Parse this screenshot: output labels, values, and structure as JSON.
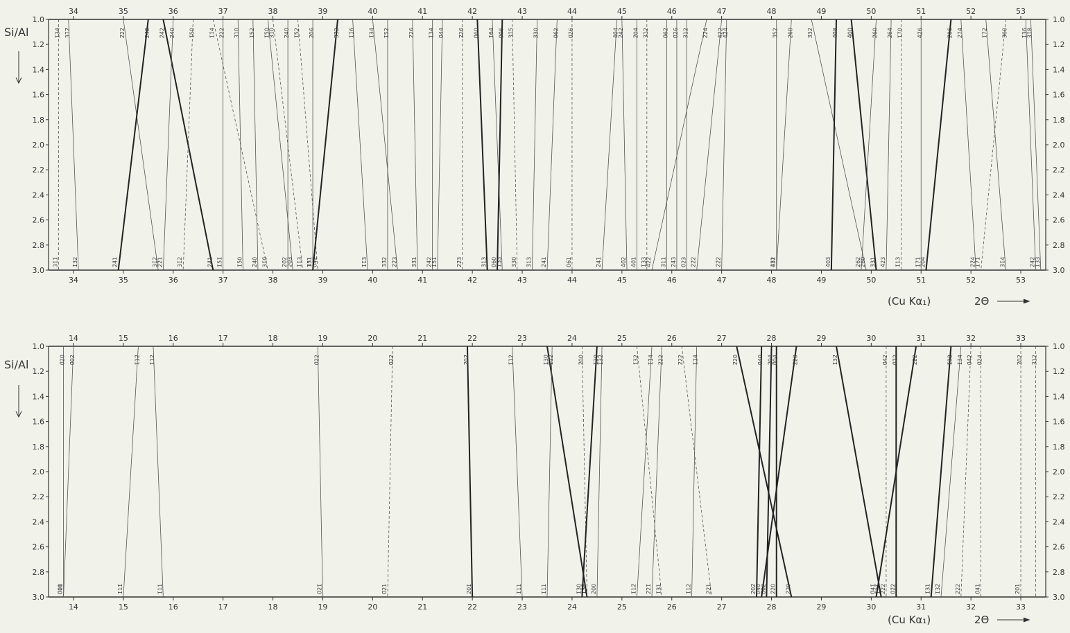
{
  "chart_data": [
    {
      "type": "line",
      "ylabel": "Si/Al",
      "xlabel": "(Cu Kα₁)",
      "xlabel_2theta": "2Θ",
      "xlim": [
        33.5,
        53.5
      ],
      "ylim": [
        1.0,
        3.0
      ],
      "y_ticks": [
        "1.0",
        "1.2",
        "1.4",
        "1.6",
        "1.8",
        "2.0",
        "2.2",
        "2.4",
        "2.6",
        "2.8",
        "3.0"
      ],
      "x_ticks": [
        "34",
        "35",
        "36",
        "37",
        "38",
        "39",
        "40",
        "41",
        "42",
        "43",
        "44",
        "45",
        "46",
        "47",
        "48",
        "49",
        "50",
        "51",
        "52",
        "53"
      ],
      "series": [
        {
          "x": [
            33.7,
            33.7
          ],
          "dashed": true,
          "bold": false,
          "top_label": "1̄34",
          "bottom_label": "31̄1̄"
        },
        {
          "x": [
            33.9,
            34.1
          ],
          "dashed": false,
          "bold": false,
          "top_label": "31̄2̄",
          "bottom_label": "1̄32"
        },
        {
          "x": [
            35.0,
            35.7
          ],
          "dashed": false,
          "bold": false,
          "top_label": "2̄22",
          "bottom_label": "31̄2"
        },
        {
          "x": [
            35.5,
            34.9
          ],
          "dashed": false,
          "bold": true,
          "top_label": "2̄4̄2",
          "bottom_label": "2̄4̄1"
        },
        {
          "x": [
            35.8,
            36.8
          ],
          "dashed": false,
          "bold": true,
          "top_label": "2̄4̄2",
          "bottom_label": "2̄4̄1"
        },
        {
          "x": [
            36.0,
            35.8
          ],
          "dashed": false,
          "bold": false,
          "top_label": "2̄40",
          "bottom_label": "2̄2̄1"
        },
        {
          "x": [
            36.4,
            36.2
          ],
          "dashed": true,
          "bold": false,
          "top_label": "1̄50",
          "bottom_label": "31̄2"
        },
        {
          "x": [
            36.8,
            37.9
          ],
          "dashed": true,
          "bold": false,
          "top_label": "1̄1̄4",
          "bottom_label": "31̄0̄"
        },
        {
          "x": [
            37.0,
            37.0
          ],
          "dashed": false,
          "bold": false,
          "top_label": "2̄22",
          "bottom_label": "1̄51̄"
        },
        {
          "x": [
            37.3,
            37.4
          ],
          "dashed": false,
          "bold": false,
          "top_label": "3̄10",
          "bottom_label": "1̄50"
        },
        {
          "x": [
            37.6,
            37.7
          ],
          "dashed": false,
          "bold": false,
          "top_label": "1̄5̄2",
          "bottom_label": "2̄40"
        },
        {
          "x": [
            37.9,
            38.4
          ],
          "dashed": false,
          "bold": false,
          "top_label": "1̄50",
          "bottom_label": "20̄3"
        },
        {
          "x": [
            38.0,
            38.6
          ],
          "dashed": true,
          "bold": false,
          "top_label": "3̄10",
          "bottom_label": "1̄1̄3"
        },
        {
          "x": [
            38.3,
            38.3
          ],
          "dashed": false,
          "bold": false,
          "top_label": "2̄40",
          "bottom_label": "2̄0̄2"
        },
        {
          "x": [
            38.5,
            38.9
          ],
          "dashed": true,
          "bold": false,
          "top_label": "1̄52",
          "bottom_label": "0̄42"
        },
        {
          "x": [
            38.8,
            38.8
          ],
          "dashed": false,
          "bold": false,
          "top_label": "2̄06",
          "bottom_label": "3̄3̄1"
        },
        {
          "x": [
            39.3,
            38.8
          ],
          "dashed": false,
          "bold": true,
          "top_label": "3̄3̄2",
          "bottom_label": "1̄5̄1"
        },
        {
          "x": [
            39.6,
            39.9
          ],
          "dashed": false,
          "bold": false,
          "top_label": "1̄1̄6",
          "bottom_label": "1̄1̄3"
        },
        {
          "x": [
            40.0,
            40.5
          ],
          "dashed": false,
          "bold": false,
          "top_label": "1̄34",
          "bottom_label": "2̄2̄3"
        },
        {
          "x": [
            40.3,
            40.3
          ],
          "dashed": false,
          "bold": false,
          "top_label": "1̄52",
          "bottom_label": "3̄3̄2"
        },
        {
          "x": [
            40.8,
            40.9
          ],
          "dashed": false,
          "bold": false,
          "top_label": "2̄26",
          "bottom_label": "3̄3̄1"
        },
        {
          "x": [
            41.2,
            41.2
          ],
          "dashed": false,
          "bold": false,
          "top_label": "1̄34",
          "bottom_label": "2̄4̄2"
        },
        {
          "x": [
            41.4,
            41.3
          ],
          "dashed": false,
          "bold": false,
          "top_label": "0̄44",
          "bottom_label": "1̄51"
        },
        {
          "x": [
            41.8,
            41.8
          ],
          "dashed": true,
          "bold": false,
          "top_label": "2̄26",
          "bottom_label": "2̄2̄3"
        },
        {
          "x": [
            42.1,
            42.3
          ],
          "dashed": false,
          "bold": true,
          "top_label": "0̄60",
          "bottom_label": "3̄13"
        },
        {
          "x": [
            42.4,
            42.6
          ],
          "dashed": false,
          "bold": false,
          "top_label": "1̄6̄4",
          "bottom_label": "1̄33"
        },
        {
          "x": [
            42.6,
            42.5
          ],
          "dashed": false,
          "bold": true,
          "top_label": "0̄0̄6",
          "bottom_label": "0̄60"
        },
        {
          "x": [
            42.8,
            42.9
          ],
          "dashed": true,
          "bold": false,
          "top_label": "3̄1̄5",
          "bottom_label": "3̄30"
        },
        {
          "x": [
            43.3,
            43.2
          ],
          "dashed": false,
          "bold": false,
          "top_label": "3̄30",
          "bottom_label": "3̄13"
        },
        {
          "x": [
            43.7,
            43.5
          ],
          "dashed": false,
          "bold": false,
          "top_label": "0̄6̄2",
          "bottom_label": "2̄41"
        },
        {
          "x": [
            44.0,
            44.0
          ],
          "dashed": true,
          "bold": false,
          "top_label": "0̄2̄6",
          "bottom_label": "0̄61"
        },
        {
          "x": [
            44.9,
            44.6
          ],
          "dashed": false,
          "bold": false,
          "top_label": "4̄0̄4",
          "bottom_label": "2̄41"
        },
        {
          "x": [
            45.0,
            45.1
          ],
          "dashed": false,
          "bold": false,
          "top_label": "2̄42",
          "bottom_label": "4̄0̄2"
        },
        {
          "x": [
            45.3,
            45.3
          ],
          "dashed": false,
          "bold": false,
          "top_label": "2̄04",
          "bottom_label": "4̄0̄1"
        },
        {
          "x": [
            45.5,
            45.5
          ],
          "dashed": true,
          "bold": false,
          "top_label": "3̄1̄2",
          "bottom_label": "1̄33"
        },
        {
          "x": [
            45.9,
            45.9
          ],
          "dashed": false,
          "bold": false,
          "top_label": "0̄62",
          "bottom_label": "3̄11"
        },
        {
          "x": [
            46.1,
            46.1
          ],
          "dashed": false,
          "bold": false,
          "top_label": "0̄26",
          "bottom_label": "2̄4̄3"
        },
        {
          "x": [
            46.3,
            46.3
          ],
          "dashed": false,
          "bold": false,
          "top_label": "3̄12",
          "bottom_label": "0̄23"
        },
        {
          "x": [
            46.7,
            45.6
          ],
          "dashed": false,
          "bold": false,
          "top_label": "2̄2̄4",
          "bottom_label": "4̄2̄2"
        },
        {
          "x": [
            47.0,
            46.5
          ],
          "dashed": false,
          "bold": false,
          "top_label": "4̄2̄2",
          "bottom_label": "2̄2̄2"
        },
        {
          "x": [
            47.1,
            47.0
          ],
          "dashed": false,
          "bold": false,
          "top_label": "4̄2̄4",
          "bottom_label": "2̄2̄2"
        },
        {
          "x": [
            48.1,
            48.1
          ],
          "dashed": false,
          "bold": false,
          "top_label": "3̄52",
          "bottom_label": "4̄22"
        },
        {
          "x": [
            48.4,
            48.1
          ],
          "dashed": false,
          "bold": false,
          "top_label": "2̄60",
          "bottom_label": "3̄51"
        },
        {
          "x": [
            48.8,
            49.9
          ],
          "dashed": false,
          "bold": false,
          "top_label": "3̄32",
          "bottom_label": "2̄60"
        },
        {
          "x": [
            49.3,
            49.2
          ],
          "dashed": false,
          "bold": true,
          "top_label": "4̄0̄8",
          "bottom_label": "4̄03"
        },
        {
          "x": [
            49.6,
            50.1
          ],
          "dashed": false,
          "bold": true,
          "top_label": "4̄00",
          "bottom_label": "3̄31"
        },
        {
          "x": [
            50.1,
            49.8
          ],
          "dashed": false,
          "bold": false,
          "top_label": "2̄60",
          "bottom_label": "2̄6̄2"
        },
        {
          "x": [
            50.4,
            50.3
          ],
          "dashed": false,
          "bold": false,
          "top_label": "2̄6̄4",
          "bottom_label": "4̄23"
        },
        {
          "x": [
            50.6,
            50.6
          ],
          "dashed": true,
          "bold": false,
          "top_label": "1̄7̄0",
          "bottom_label": "1̄13"
        },
        {
          "x": [
            51.0,
            51.0
          ],
          "dashed": false,
          "bold": false,
          "top_label": "4̄2̄6",
          "bottom_label": "1̄7̄1"
        },
        {
          "x": [
            51.6,
            51.1
          ],
          "dashed": false,
          "bold": true,
          "top_label": "2̄06",
          "bottom_label": "2̄04"
        },
        {
          "x": [
            51.8,
            52.1
          ],
          "dashed": false,
          "bold": false,
          "top_label": "2̄7̄4",
          "bottom_label": "2̄2̄4"
        },
        {
          "x": [
            52.3,
            52.7
          ],
          "dashed": false,
          "bold": false,
          "top_label": "1̄7̄2",
          "bottom_label": "3̄1̄4"
        },
        {
          "x": [
            52.7,
            52.2
          ],
          "dashed": true,
          "bold": false,
          "top_label": "3̄60",
          "bottom_label": "1̄71"
        },
        {
          "x": [
            53.1,
            53.3
          ],
          "dashed": false,
          "bold": false,
          "top_label": "1̄36",
          "bottom_label": "2̄4̄2"
        },
        {
          "x": [
            53.2,
            53.4
          ],
          "dashed": false,
          "bold": false,
          "top_label": "3̄1̄8",
          "bottom_label": "1̄33"
        }
      ]
    },
    {
      "type": "line",
      "ylabel": "Si/Al",
      "xlabel": "(Cu Kα₁)",
      "xlabel_2theta": "2Θ",
      "xlim": [
        13.5,
        33.5
      ],
      "ylim": [
        1.0,
        3.0
      ],
      "y_ticks": [
        "1.0",
        "1.2",
        "1.4",
        "1.6",
        "1.8",
        "2.0",
        "2.2",
        "2.4",
        "2.6",
        "2.8",
        "3.0"
      ],
      "x_ticks": [
        "14",
        "15",
        "16",
        "17",
        "18",
        "19",
        "20",
        "21",
        "22",
        "23",
        "24",
        "25",
        "26",
        "27",
        "28",
        "29",
        "30",
        "31",
        "32",
        "33"
      ],
      "series": [
        {
          "x": [
            13.8,
            13.8
          ],
          "dashed": false,
          "bold": false,
          "top_label": "0̄20",
          "bottom_label": "0̄01"
        },
        {
          "x": [
            14.0,
            13.8
          ],
          "dashed": false,
          "bold": false,
          "top_label": "0̄02",
          "bottom_label": "0̄20"
        },
        {
          "x": [
            15.3,
            15.0
          ],
          "dashed": false,
          "bold": false,
          "top_label": "1̄12̄",
          "bottom_label": "1̄11̄"
        },
        {
          "x": [
            15.6,
            15.8
          ],
          "dashed": false,
          "bold": false,
          "top_label": "1̄12",
          "bottom_label": "1̄11"
        },
        {
          "x": [
            18.9,
            19.0
          ],
          "dashed": false,
          "bold": false,
          "top_label": "0̄22",
          "bottom_label": "0̄21̄"
        },
        {
          "x": [
            20.4,
            20.3
          ],
          "dashed": true,
          "bold": false,
          "top_label": "0̄22",
          "bottom_label": "0̄21"
        },
        {
          "x": [
            21.9,
            22.0
          ],
          "dashed": false,
          "bold": true,
          "top_label": "2̄02̄",
          "bottom_label": "2̄01̄"
        },
        {
          "x": [
            22.8,
            23.0
          ],
          "dashed": false,
          "bold": false,
          "top_label": "1̄12",
          "bottom_label": "1̄11"
        },
        {
          "x": [
            23.5,
            24.3
          ],
          "dashed": false,
          "bold": true,
          "top_label": "1̄30",
          "bottom_label": "1̄30"
        },
        {
          "x": [
            23.6,
            23.5
          ],
          "dashed": false,
          "bold": false,
          "top_label": "1̄12",
          "bottom_label": "1̄11"
        },
        {
          "x": [
            24.2,
            24.3
          ],
          "dashed": true,
          "bold": false,
          "top_label": "2̄00",
          "bottom_label": "1̄31̄"
        },
        {
          "x": [
            24.5,
            24.2
          ],
          "dashed": false,
          "bold": true,
          "top_label": "1̄30",
          "bottom_label": "1̄30"
        },
        {
          "x": [
            24.6,
            24.5
          ],
          "dashed": false,
          "bold": false,
          "top_label": "1̄32̄",
          "bottom_label": "2̄00"
        },
        {
          "x": [
            25.3,
            25.8
          ],
          "dashed": true,
          "bold": false,
          "top_label": "1̄32",
          "bottom_label": "1̄31"
        },
        {
          "x": [
            25.6,
            25.3
          ],
          "dashed": false,
          "bold": false,
          "top_label": "1̄1̄4",
          "bottom_label": "1̄12̄"
        },
        {
          "x": [
            25.8,
            25.6
          ],
          "dashed": false,
          "bold": false,
          "top_label": "2̄22",
          "bottom_label": "2̄21̄"
        },
        {
          "x": [
            26.2,
            26.8
          ],
          "dashed": true,
          "bold": false,
          "top_label": "2̄22",
          "bottom_label": "2̄21"
        },
        {
          "x": [
            26.5,
            26.4
          ],
          "dashed": false,
          "bold": false,
          "top_label": "1̄1̄4",
          "bottom_label": "1̄12"
        },
        {
          "x": [
            27.3,
            28.4
          ],
          "dashed": false,
          "bold": true,
          "top_label": "2̄20",
          "bottom_label": "2̄20"
        },
        {
          "x": [
            27.8,
            27.7
          ],
          "dashed": false,
          "bold": true,
          "top_label": "0̄40",
          "bottom_label": "2̄02̄"
        },
        {
          "x": [
            28.0,
            27.9
          ],
          "dashed": false,
          "bold": true,
          "top_label": "2̄04",
          "bottom_label": "0̄02"
        },
        {
          "x": [
            28.1,
            28.1
          ],
          "dashed": false,
          "bold": true,
          "top_label": "0̄04",
          "bottom_label": "2̄20"
        },
        {
          "x": [
            28.5,
            27.8
          ],
          "dashed": false,
          "bold": true,
          "top_label": "2̄20",
          "bottom_label": "0̄40"
        },
        {
          "x": [
            29.3,
            30.2
          ],
          "dashed": false,
          "bold": true,
          "top_label": "1̄32̄",
          "bottom_label": "1̄31̄"
        },
        {
          "x": [
            30.3,
            30.3
          ],
          "dashed": true,
          "bold": false,
          "top_label": "0̄42",
          "bottom_label": "2̄22"
        },
        {
          "x": [
            30.5,
            30.5
          ],
          "dashed": false,
          "bold": true,
          "top_label": "0̄2̄2",
          "bottom_label": "0̄2̄2"
        },
        {
          "x": [
            30.9,
            30.1
          ],
          "dashed": false,
          "bold": true,
          "top_label": "2̄2̄2",
          "bottom_label": "0̄41̄"
        },
        {
          "x": [
            31.6,
            31.2
          ],
          "dashed": false,
          "bold": true,
          "top_label": "1̄32",
          "bottom_label": "1̄31"
        },
        {
          "x": [
            31.8,
            31.4
          ],
          "dashed": false,
          "bold": false,
          "top_label": "1̄3̄4",
          "bottom_label": "1̄32̄"
        },
        {
          "x": [
            32.0,
            31.8
          ],
          "dashed": true,
          "bold": false,
          "top_label": "0̄4̄2",
          "bottom_label": "2̄22"
        },
        {
          "x": [
            32.2,
            32.2
          ],
          "dashed": true,
          "bold": false,
          "top_label": "0̄24",
          "bottom_label": "0̄41"
        },
        {
          "x": [
            33.0,
            33.0
          ],
          "dashed": true,
          "bold": false,
          "top_label": "2̄02",
          "bottom_label": "2̄01"
        },
        {
          "x": [
            33.3,
            33.3
          ],
          "dashed": true,
          "bold": false,
          "top_label": "3̄12",
          "bottom_label": ""
        }
      ]
    }
  ]
}
